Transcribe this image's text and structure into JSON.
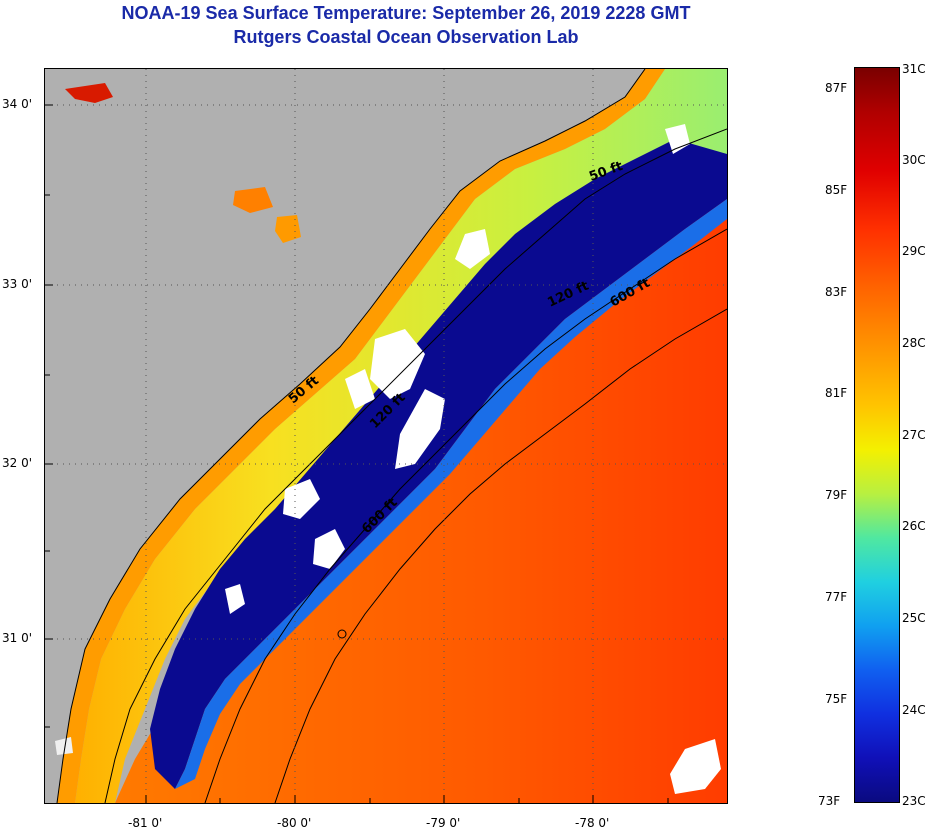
{
  "title": {
    "line1": "NOAA-19 Sea Surface Temperature:  September 26, 2019 2228 GMT",
    "line2": "Rutgers Coastal Ocean Observation Lab"
  },
  "axes": {
    "lat_ticks": [
      "34 0'",
      "33 0'",
      "32 0'",
      "31 0'"
    ],
    "lon_ticks": [
      "-81 0'",
      "-80 0'",
      "-79 0'",
      "-78 0'"
    ]
  },
  "isobaths": [
    "50 ft",
    "120 ft",
    "600 ft",
    "50 ft",
    "120 ft",
    "600 ft"
  ],
  "colorbar": {
    "celsius": [
      "31C",
      "30C",
      "29C",
      "28C",
      "27C",
      "26C",
      "25C",
      "24C",
      "23C"
    ],
    "fahrenheit": [
      "87F",
      "85F",
      "83F",
      "81F",
      "79F",
      "77F",
      "75F",
      "73F"
    ]
  },
  "colors": {
    "title": "#1a2aa8",
    "land": "#b0b0b0",
    "cold": "#0a0a90",
    "warm": "#ff5a00"
  }
}
